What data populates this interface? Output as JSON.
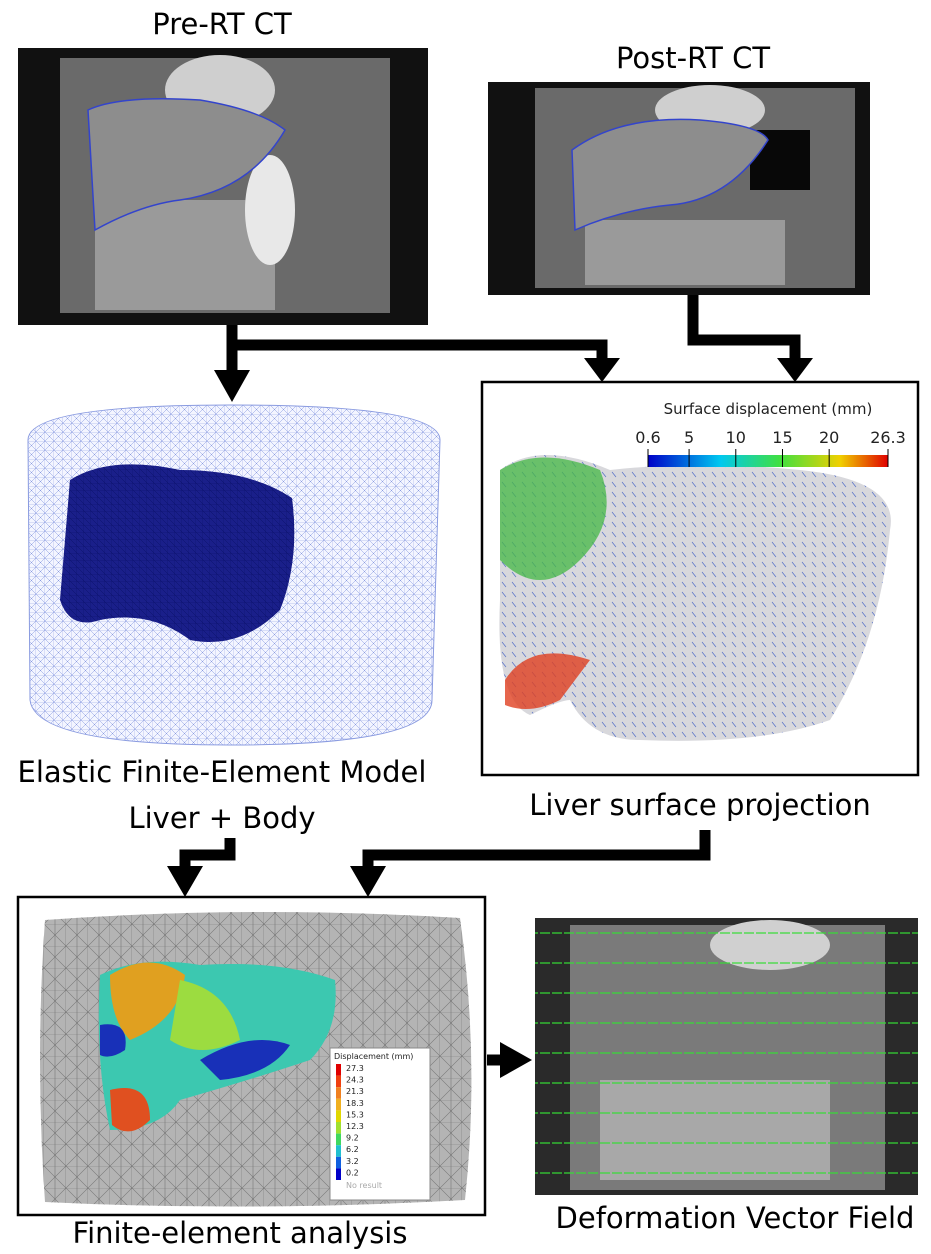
{
  "panels": {
    "pre_ct": {
      "title": "Pre-RT CT"
    },
    "post_ct": {
      "title": "Post-RT CT"
    },
    "fe_model": {
      "title": "Elastic Finite-Element Model",
      "subtitle": "Liver + Body"
    },
    "surface_projection": {
      "title": "Liver surface projection",
      "colorbar": {
        "label": "Surface displacement (mm)",
        "ticks": [
          0.6,
          5,
          10,
          15,
          20,
          26.3
        ]
      }
    },
    "fe_analysis": {
      "title": "Finite-element analysis",
      "legend": {
        "title": "Displacement (mm)",
        "values": [
          27.3,
          24.3,
          21.3,
          18.3,
          15.3,
          12.3,
          9.2,
          6.2,
          3.2,
          0.2
        ],
        "no_result": "No result"
      }
    },
    "dvf": {
      "title": "Deformation Vector Field"
    }
  }
}
